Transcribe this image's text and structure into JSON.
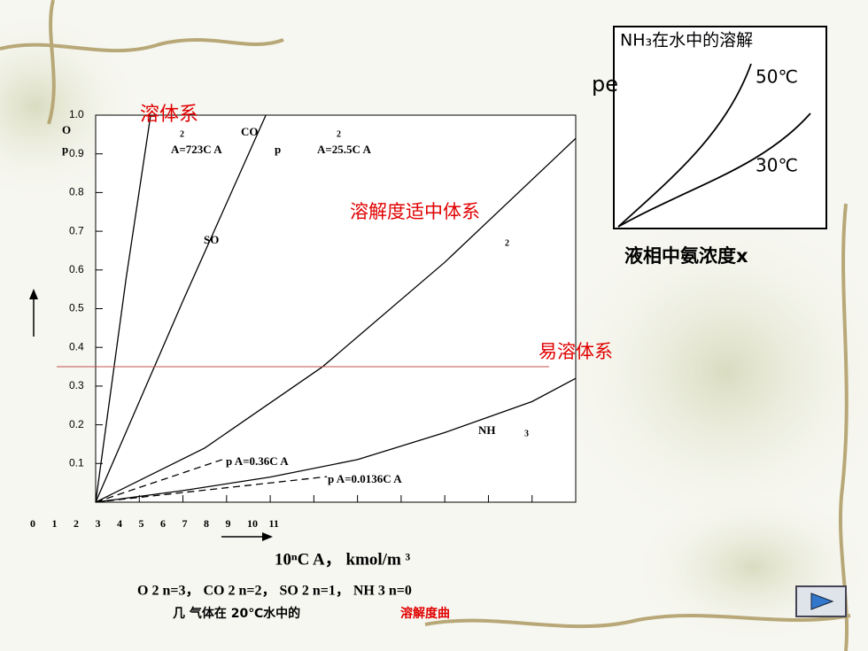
{
  "chart_data": {
    "type": "line",
    "xlim": [
      0,
      11
    ],
    "ylim": [
      0,
      1
    ],
    "xticks": [
      0,
      1,
      2,
      3,
      4,
      5,
      6,
      7,
      8,
      9,
      10,
      11
    ],
    "yticks": [
      0.1,
      0.2,
      0.3,
      0.4,
      0.5,
      0.6,
      0.7,
      0.8,
      0.9,
      {
        "value": 1,
        "label": "1.0"
      }
    ],
    "xlabel": "10ⁿC A， kmol/m ³",
    "series": [
      {
        "color": "#000000",
        "dash": false,
        "x": [
          0,
          0.7,
          1.26
        ],
        "values": [
          0,
          0.58,
          1.0
        ]
      },
      {
        "color": "#000000",
        "dash": false,
        "x": [
          0,
          2,
          3.9
        ],
        "values": [
          0,
          0.52,
          1.0
        ]
      },
      {
        "color": "#000000",
        "dash": false,
        "x": [
          0,
          2.5,
          5.2,
          8,
          11
        ],
        "values": [
          0,
          0.14,
          0.35,
          0.62,
          0.94
        ]
      },
      {
        "color": "#000000",
        "dash": false,
        "x": [
          0,
          2,
          4,
          6,
          8,
          10,
          11
        ],
        "values": [
          0,
          0.03,
          0.065,
          0.11,
          0.18,
          0.26,
          0.32
        ]
      },
      {
        "color": "#000000",
        "dash": true,
        "x": [
          0,
          2.9
        ],
        "values": [
          0,
          0.11
        ]
      },
      {
        "color": "#000000",
        "dash": true,
        "x": [
          0,
          5.3
        ],
        "values": [
          0,
          0.066
        ]
      }
    ],
    "reference_line": {
      "value": 0.35,
      "color": "#c0504d"
    },
    "annotations": [
      "溶体系",
      "O",
      "p",
      "2",
      "CO",
      "2",
      "A=723C A",
      "p",
      "A=25.5C A",
      "SO",
      "2",
      "溶解度适中体系",
      "易溶体系",
      "NH",
      "3",
      "p A=0.36C A",
      "p A=0.0136C A"
    ]
  },
  "inset": {
    "title": "NH₃在水中的溶解",
    "ylabel": "pe",
    "labels": [
      "50℃",
      "30℃"
    ],
    "xlabel": "液相中氨浓度x"
  },
  "caption": {
    "line1": "O 2  n=3， CO 2  n=2， SO 2  n=1， NH 3  n=0",
    "line2_black": "几  气体在  20℃水中的",
    "line2_red": "溶解度曲"
  }
}
